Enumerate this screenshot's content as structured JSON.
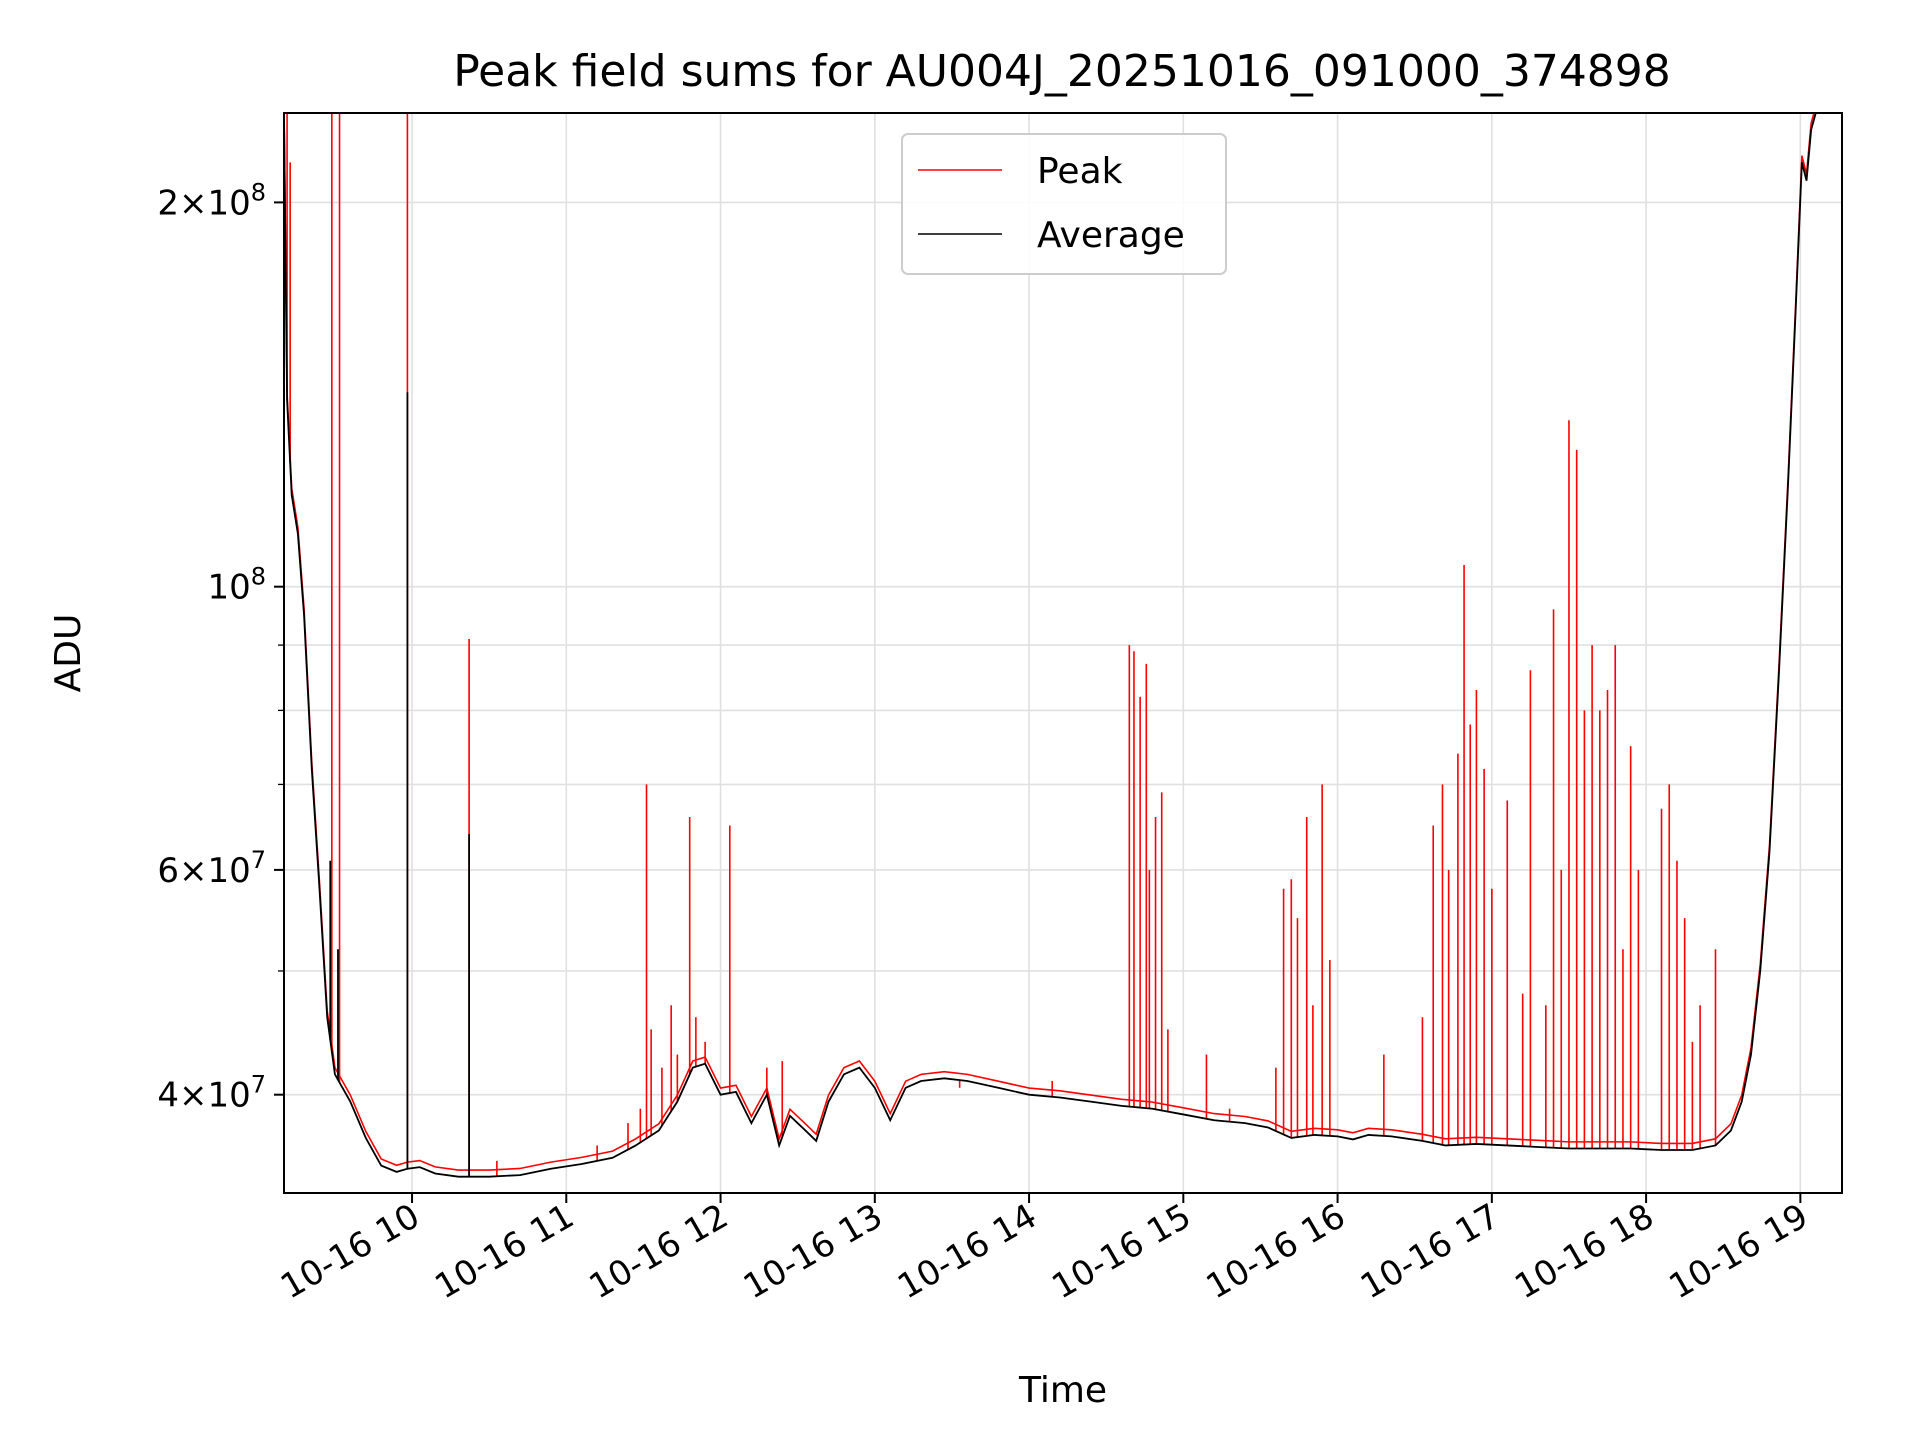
{
  "chart_data": {
    "type": "line",
    "title": "Peak field sums for AU004J_20251016_091000_374898",
    "xlabel": "Time",
    "ylabel": "ADU",
    "yscale": "log",
    "xlim": [
      9.17,
      19.27
    ],
    "ylim": [
      33500000,
      235000000
    ],
    "grid": true,
    "legend": {
      "position": "top-center",
      "entries": [
        "Peak",
        "Average"
      ]
    },
    "x_ticks": [
      {
        "value": 10,
        "label": "10-16 10"
      },
      {
        "value": 11,
        "label": "10-16 11"
      },
      {
        "value": 12,
        "label": "10-16 12"
      },
      {
        "value": 13,
        "label": "10-16 13"
      },
      {
        "value": 14,
        "label": "10-16 14"
      },
      {
        "value": 15,
        "label": "10-16 15"
      },
      {
        "value": 16,
        "label": "10-16 16"
      },
      {
        "value": 17,
        "label": "10-16 17"
      },
      {
        "value": 18,
        "label": "10-16 18"
      },
      {
        "value": 19,
        "label": "10-16 19"
      }
    ],
    "y_ticks": [
      {
        "value": 40000000,
        "mantissa": "4",
        "exp": "7"
      },
      {
        "value": 60000000,
        "mantissa": "6",
        "exp": "7"
      },
      {
        "value": 100000000,
        "mantissa": "",
        "exp": "8"
      },
      {
        "value": 200000000,
        "mantissa": "2",
        "exp": "8"
      }
    ],
    "y_minor_ticks": [
      50000000,
      70000000,
      80000000,
      90000000
    ],
    "series": [
      {
        "name": "Average",
        "color": "#000000",
        "points": [
          [
            9.17,
            235000000
          ],
          [
            9.19,
            140000000
          ],
          [
            9.22,
            118000000
          ],
          [
            9.26,
            110000000
          ],
          [
            9.3,
            95000000
          ],
          [
            9.35,
            72000000
          ],
          [
            9.4,
            58000000
          ],
          [
            9.45,
            46000000
          ],
          [
            9.5,
            41500000
          ],
          [
            9.6,
            39500000
          ],
          [
            9.7,
            37000000
          ],
          [
            9.8,
            35200000
          ],
          [
            9.9,
            34800000
          ],
          [
            9.97,
            35000000
          ],
          [
            10.05,
            35100000
          ],
          [
            10.15,
            34700000
          ],
          [
            10.3,
            34500000
          ],
          [
            10.5,
            34500000
          ],
          [
            10.7,
            34600000
          ],
          [
            10.9,
            35000000
          ],
          [
            11.1,
            35300000
          ],
          [
            11.3,
            35700000
          ],
          [
            11.45,
            36500000
          ],
          [
            11.6,
            37500000
          ],
          [
            11.72,
            39500000
          ],
          [
            11.82,
            42000000
          ],
          [
            11.9,
            42300000
          ],
          [
            12.0,
            40000000
          ],
          [
            12.1,
            40200000
          ],
          [
            12.2,
            38000000
          ],
          [
            12.3,
            40000000
          ],
          [
            12.38,
            36500000
          ],
          [
            12.45,
            38500000
          ],
          [
            12.55,
            37500000
          ],
          [
            12.62,
            36800000
          ],
          [
            12.7,
            39500000
          ],
          [
            12.8,
            41500000
          ],
          [
            12.9,
            42000000
          ],
          [
            13.0,
            40500000
          ],
          [
            13.1,
            38200000
          ],
          [
            13.2,
            40500000
          ],
          [
            13.3,
            41000000
          ],
          [
            13.45,
            41200000
          ],
          [
            13.6,
            41000000
          ],
          [
            13.8,
            40500000
          ],
          [
            14.0,
            40000000
          ],
          [
            14.2,
            39800000
          ],
          [
            14.4,
            39500000
          ],
          [
            14.6,
            39200000
          ],
          [
            14.8,
            39000000
          ],
          [
            15.0,
            38600000
          ],
          [
            15.2,
            38200000
          ],
          [
            15.4,
            38000000
          ],
          [
            15.55,
            37700000
          ],
          [
            15.7,
            37000000
          ],
          [
            15.85,
            37200000
          ],
          [
            16.0,
            37100000
          ],
          [
            16.1,
            36900000
          ],
          [
            16.2,
            37200000
          ],
          [
            16.35,
            37100000
          ],
          [
            16.55,
            36800000
          ],
          [
            16.7,
            36500000
          ],
          [
            16.9,
            36600000
          ],
          [
            17.1,
            36500000
          ],
          [
            17.3,
            36400000
          ],
          [
            17.5,
            36300000
          ],
          [
            17.7,
            36300000
          ],
          [
            17.9,
            36300000
          ],
          [
            18.1,
            36200000
          ],
          [
            18.3,
            36200000
          ],
          [
            18.45,
            36500000
          ],
          [
            18.55,
            37500000
          ],
          [
            18.62,
            39500000
          ],
          [
            18.68,
            43000000
          ],
          [
            18.74,
            50000000
          ],
          [
            18.8,
            62000000
          ],
          [
            18.86,
            85000000
          ],
          [
            18.92,
            120000000
          ],
          [
            18.97,
            165000000
          ],
          [
            19.01,
            215000000
          ],
          [
            19.04,
            208000000
          ],
          [
            19.07,
            228000000
          ],
          [
            19.1,
            235000000
          ],
          [
            19.27,
            235000000
          ]
        ],
        "spikes": [
          [
            9.97,
            142000000
          ],
          [
            10.37,
            64000000
          ],
          [
            9.52,
            52000000
          ],
          [
            9.47,
            61000000
          ]
        ]
      },
      {
        "name": "Peak",
        "color": "#ff0000",
        "spikes": [
          [
            9.19,
            235000000
          ],
          [
            9.21,
            215000000
          ],
          [
            9.48,
            235000000
          ],
          [
            9.53,
            235000000
          ],
          [
            9.97,
            235000000
          ],
          [
            10.37,
            91000000
          ],
          [
            10.55,
            35500000
          ],
          [
            11.2,
            36500000
          ],
          [
            11.4,
            38000000
          ],
          [
            11.48,
            39000000
          ],
          [
            11.52,
            70000000
          ],
          [
            11.55,
            45000000
          ],
          [
            11.62,
            42000000
          ],
          [
            11.68,
            47000000
          ],
          [
            11.72,
            43000000
          ],
          [
            11.8,
            66000000
          ],
          [
            11.84,
            46000000
          ],
          [
            11.9,
            44000000
          ],
          [
            12.06,
            65000000
          ],
          [
            12.3,
            42000000
          ],
          [
            12.4,
            42500000
          ],
          [
            13.55,
            40500000
          ],
          [
            14.15,
            41000000
          ],
          [
            14.65,
            90000000
          ],
          [
            14.68,
            89000000
          ],
          [
            14.72,
            82000000
          ],
          [
            14.76,
            87000000
          ],
          [
            14.78,
            60000000
          ],
          [
            14.82,
            66000000
          ],
          [
            14.86,
            69000000
          ],
          [
            14.9,
            45000000
          ],
          [
            15.15,
            43000000
          ],
          [
            15.3,
            39000000
          ],
          [
            15.6,
            42000000
          ],
          [
            15.65,
            58000000
          ],
          [
            15.7,
            59000000
          ],
          [
            15.74,
            55000000
          ],
          [
            15.8,
            66000000
          ],
          [
            15.84,
            47000000
          ],
          [
            15.9,
            70000000
          ],
          [
            15.95,
            51000000
          ],
          [
            16.3,
            43000000
          ],
          [
            16.55,
            46000000
          ],
          [
            16.62,
            65000000
          ],
          [
            16.68,
            70000000
          ],
          [
            16.72,
            60000000
          ],
          [
            16.78,
            74000000
          ],
          [
            16.82,
            104000000
          ],
          [
            16.86,
            78000000
          ],
          [
            16.9,
            83000000
          ],
          [
            16.95,
            72000000
          ],
          [
            17.0,
            58000000
          ],
          [
            17.1,
            68000000
          ],
          [
            17.2,
            48000000
          ],
          [
            17.25,
            86000000
          ],
          [
            17.35,
            47000000
          ],
          [
            17.4,
            96000000
          ],
          [
            17.45,
            60000000
          ],
          [
            17.5,
            135000000
          ],
          [
            17.55,
            128000000
          ],
          [
            17.6,
            80000000
          ],
          [
            17.65,
            90000000
          ],
          [
            17.7,
            80000000
          ],
          [
            17.75,
            83000000
          ],
          [
            17.8,
            90000000
          ],
          [
            17.85,
            52000000
          ],
          [
            17.9,
            75000000
          ],
          [
            17.95,
            60000000
          ],
          [
            18.1,
            67000000
          ],
          [
            18.15,
            70000000
          ],
          [
            18.2,
            61000000
          ],
          [
            18.25,
            55000000
          ],
          [
            18.3,
            44000000
          ],
          [
            18.35,
            47000000
          ],
          [
            18.45,
            52000000
          ]
        ]
      }
    ]
  }
}
